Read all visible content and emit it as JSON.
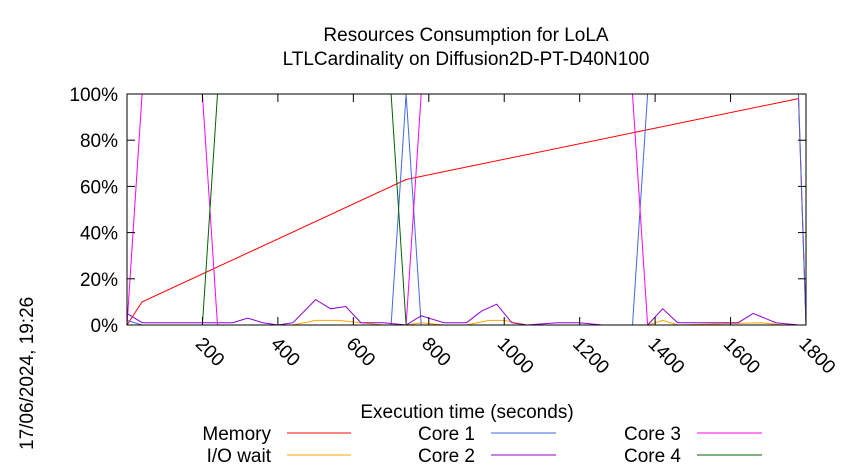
{
  "chart_data": {
    "type": "line",
    "title": "Resources Consumption for LoLA",
    "subtitle": "LTLCardinality on Diffusion2D-PT-D40N100",
    "xlabel": "Execution time (seconds)",
    "ylabel": "",
    "timestamp": "17/06/2024, 19:26",
    "xlim": [
      0,
      1800
    ],
    "ylim": [
      0,
      100
    ],
    "x_ticks": [
      {
        "value": 200,
        "label": "200"
      },
      {
        "value": 400,
        "label": "400"
      },
      {
        "value": 600,
        "label": "600"
      },
      {
        "value": 800,
        "label": "800"
      },
      {
        "value": 1000,
        "label": "1000"
      },
      {
        "value": 1200,
        "label": "1200"
      },
      {
        "value": 1400,
        "label": "1400"
      },
      {
        "value": 1600,
        "label": "1600"
      },
      {
        "value": 1800,
        "label": "1800"
      }
    ],
    "y_ticks": [
      {
        "value": 0,
        "label": "0%"
      },
      {
        "value": 20,
        "label": "20%"
      },
      {
        "value": 40,
        "label": "40%"
      },
      {
        "value": 60,
        "label": "60%"
      },
      {
        "value": 80,
        "label": "80%"
      },
      {
        "value": 100,
        "label": "100%"
      }
    ],
    "legend_placement": "bottom",
    "grid": false,
    "series": [
      {
        "name": "Memory",
        "color": "#ff0000",
        "points": [
          [
            0,
            0
          ],
          [
            40,
            10
          ],
          [
            740,
            63
          ],
          [
            1780,
            98
          ],
          [
            1800,
            0
          ]
        ]
      },
      {
        "name": "I/O wait",
        "color": "#ffa500",
        "points": [
          [
            0,
            0
          ],
          [
            40,
            0
          ],
          [
            240,
            0
          ],
          [
            340,
            0
          ],
          [
            440,
            0
          ],
          [
            500,
            2
          ],
          [
            560,
            2
          ],
          [
            620,
            1
          ],
          [
            680,
            0
          ],
          [
            740,
            0
          ],
          [
            780,
            1
          ],
          [
            840,
            0
          ],
          [
            900,
            0
          ],
          [
            960,
            2
          ],
          [
            1000,
            2
          ],
          [
            1060,
            0
          ],
          [
            1340,
            0
          ],
          [
            1380,
            0
          ],
          [
            1420,
            2
          ],
          [
            1460,
            0
          ],
          [
            1680,
            1
          ],
          [
            1740,
            0
          ],
          [
            1800,
            0
          ]
        ]
      },
      {
        "name": "Core 1",
        "color": "#4169e1",
        "points": [
          [
            0,
            2
          ],
          [
            40,
            0
          ],
          [
            400,
            0
          ],
          [
            440,
            0
          ],
          [
            700,
            0
          ],
          [
            740,
            100
          ],
          [
            780,
            0
          ],
          [
            1340,
            0
          ],
          [
            1380,
            100
          ],
          [
            1780,
            100
          ],
          [
            1800,
            0
          ]
        ]
      },
      {
        "name": "Core 2",
        "color": "#9400d3",
        "points": [
          [
            0,
            5
          ],
          [
            40,
            1
          ],
          [
            80,
            1
          ],
          [
            140,
            1
          ],
          [
            200,
            1
          ],
          [
            240,
            1
          ],
          [
            280,
            1
          ],
          [
            320,
            3
          ],
          [
            360,
            1
          ],
          [
            400,
            0
          ],
          [
            440,
            1
          ],
          [
            500,
            11
          ],
          [
            540,
            7
          ],
          [
            580,
            8
          ],
          [
            620,
            1
          ],
          [
            680,
            1
          ],
          [
            740,
            0
          ],
          [
            780,
            4
          ],
          [
            840,
            1
          ],
          [
            900,
            1
          ],
          [
            940,
            6
          ],
          [
            980,
            9
          ],
          [
            1020,
            1
          ],
          [
            1060,
            0
          ],
          [
            1140,
            1
          ],
          [
            1200,
            1
          ],
          [
            1260,
            0
          ],
          [
            1340,
            0
          ],
          [
            1380,
            0
          ],
          [
            1420,
            7
          ],
          [
            1460,
            1
          ],
          [
            1520,
            1
          ],
          [
            1580,
            1
          ],
          [
            1620,
            1
          ],
          [
            1660,
            5
          ],
          [
            1720,
            1
          ],
          [
            1780,
            0
          ],
          [
            1800,
            0
          ]
        ]
      },
      {
        "name": "Core 3",
        "color": "#ff00ff",
        "points": [
          [
            0,
            0
          ],
          [
            40,
            100
          ],
          [
            200,
            100
          ],
          [
            240,
            0
          ],
          [
            740,
            0
          ],
          [
            780,
            100
          ],
          [
            1340,
            100
          ],
          [
            1380,
            0
          ],
          [
            1780,
            0
          ],
          [
            1800,
            0
          ]
        ]
      },
      {
        "name": "Core 4",
        "color": "#006400",
        "points": [
          [
            0,
            0
          ],
          [
            40,
            0
          ],
          [
            200,
            0
          ],
          [
            240,
            100
          ],
          [
            700,
            100
          ],
          [
            740,
            0
          ],
          [
            780,
            0
          ],
          [
            1800,
            0
          ]
        ]
      }
    ]
  }
}
